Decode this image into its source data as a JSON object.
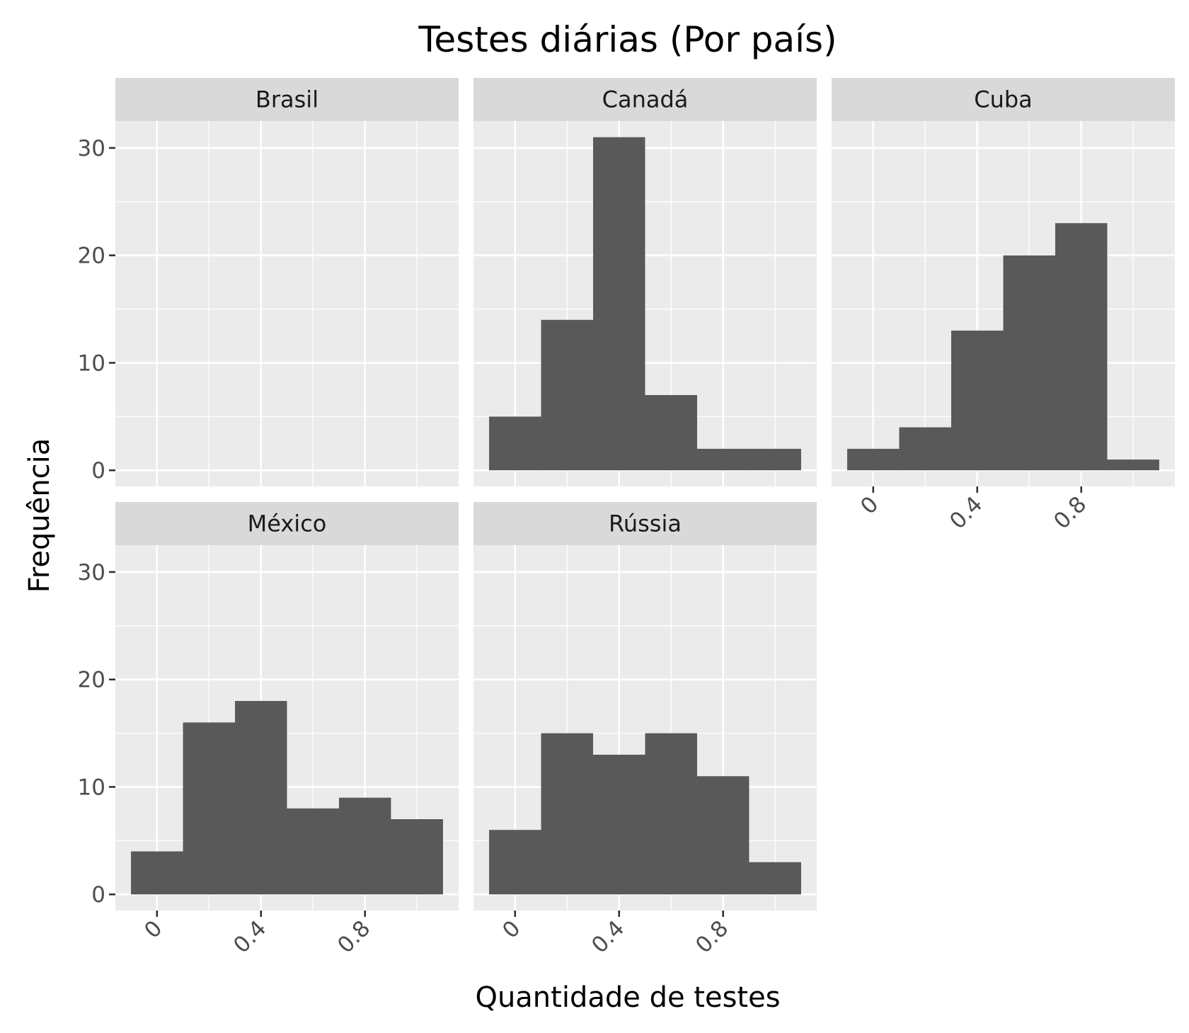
{
  "chart_data": {
    "type": "bar",
    "subtype": "faceted histogram",
    "title": "Testes diárias (Por país)",
    "xlabel": "Quantidade de testes",
    "ylabel": "Frequência",
    "xlim": [
      -0.16,
      1.16
    ],
    "ylim": [
      -1.5,
      32.5
    ],
    "x_ticks": [
      0,
      0.4,
      0.8
    ],
    "x_tick_labels": [
      "0",
      "0.4",
      "0.8"
    ],
    "y_ticks": [
      0,
      10,
      20,
      30
    ],
    "y_tick_labels": [
      "0",
      "10",
      "20",
      "30"
    ],
    "bin_edges": [
      -0.1,
      0.1,
      0.3,
      0.5,
      0.7,
      0.9,
      1.1
    ],
    "grid": true,
    "facets": [
      {
        "name": "Brasil",
        "counts": []
      },
      {
        "name": "Canadá",
        "counts": [
          5,
          14,
          31,
          7,
          2,
          2
        ]
      },
      {
        "name": "Cuba",
        "counts": [
          2,
          4,
          13,
          20,
          23,
          1
        ]
      },
      {
        "name": "México",
        "counts": [
          4,
          16,
          18,
          8,
          9,
          7
        ]
      },
      {
        "name": "Rússia",
        "counts": [
          6,
          15,
          13,
          15,
          11,
          3
        ]
      }
    ]
  }
}
